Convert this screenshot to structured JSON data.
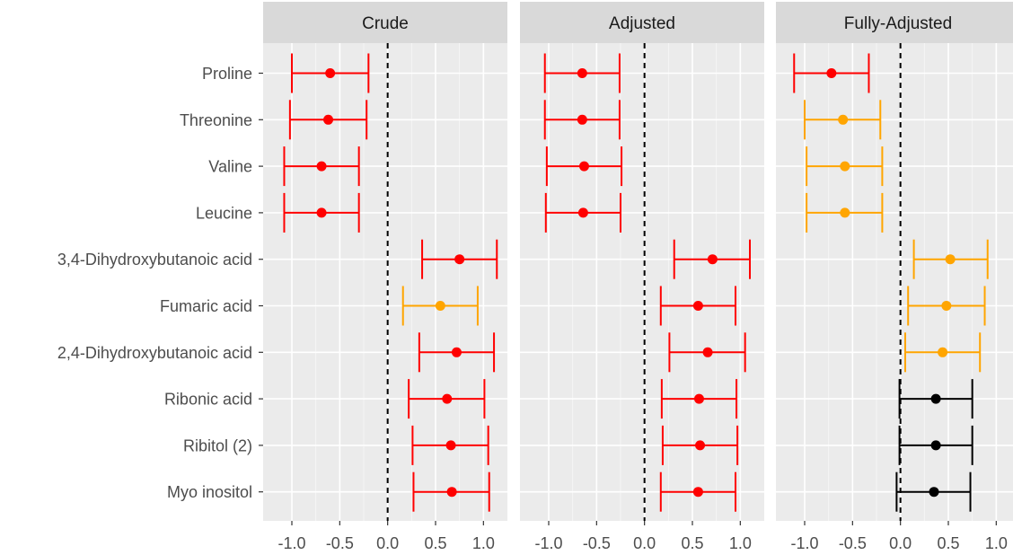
{
  "chart_data": {
    "type": "forest",
    "panels": [
      "Crude",
      "Adjusted",
      "Fully-Adjusted"
    ],
    "categories": [
      "Proline",
      "Threonine",
      "Valine",
      "Leucine",
      "3,4-Dihydroxybutanoic acid",
      "Fumaric acid",
      "2,4-Dihydroxybutanoic acid",
      "Ribonic acid",
      "Ribitol (2)",
      "Myo inositol"
    ],
    "xlim": [
      -1.3,
      1.25
    ],
    "xticks": [
      -1.0,
      -0.5,
      0.0,
      0.5,
      1.0
    ],
    "xtick_labels": [
      "-1.0",
      "-0.5",
      "0.0",
      "0.5",
      "1.0"
    ],
    "reference_line": 0,
    "grid": true,
    "colors": {
      "red": "#ff0000",
      "orange": "#ffa500",
      "black": "#000000"
    },
    "series": [
      {
        "panel": "Crude",
        "estimates": [
          -0.6,
          -0.62,
          -0.69,
          -0.69,
          0.75,
          0.55,
          0.72,
          0.62,
          0.66,
          0.67
        ],
        "lower": [
          -1.0,
          -1.02,
          -1.08,
          -1.08,
          0.36,
          0.16,
          0.33,
          0.22,
          0.26,
          0.27
        ],
        "upper": [
          -0.2,
          -0.22,
          -0.3,
          -0.3,
          1.14,
          0.94,
          1.11,
          1.01,
          1.05,
          1.06
        ],
        "colors": [
          "red",
          "red",
          "red",
          "red",
          "red",
          "orange",
          "red",
          "red",
          "red",
          "red"
        ]
      },
      {
        "panel": "Adjusted",
        "estimates": [
          -0.65,
          -0.65,
          -0.63,
          -0.64,
          0.71,
          0.56,
          0.66,
          0.57,
          0.58,
          0.56
        ],
        "lower": [
          -1.04,
          -1.04,
          -1.02,
          -1.03,
          0.31,
          0.17,
          0.26,
          0.18,
          0.19,
          0.17
        ],
        "upper": [
          -0.26,
          -0.26,
          -0.24,
          -0.25,
          1.1,
          0.95,
          1.05,
          0.96,
          0.97,
          0.95
        ],
        "colors": [
          "red",
          "red",
          "red",
          "red",
          "red",
          "red",
          "red",
          "red",
          "red",
          "red"
        ]
      },
      {
        "panel": "Fully-Adjusted",
        "estimates": [
          -0.72,
          -0.6,
          -0.58,
          -0.58,
          0.52,
          0.48,
          0.44,
          0.37,
          0.37,
          0.35
        ],
        "lower": [
          -1.11,
          -1.0,
          -0.98,
          -0.98,
          0.14,
          0.08,
          0.05,
          -0.01,
          -0.01,
          -0.04
        ],
        "upper": [
          -0.33,
          -0.21,
          -0.19,
          -0.19,
          0.91,
          0.88,
          0.83,
          0.75,
          0.75,
          0.73
        ],
        "colors": [
          "red",
          "orange",
          "orange",
          "orange",
          "orange",
          "orange",
          "orange",
          "black",
          "black",
          "black"
        ]
      }
    ]
  }
}
